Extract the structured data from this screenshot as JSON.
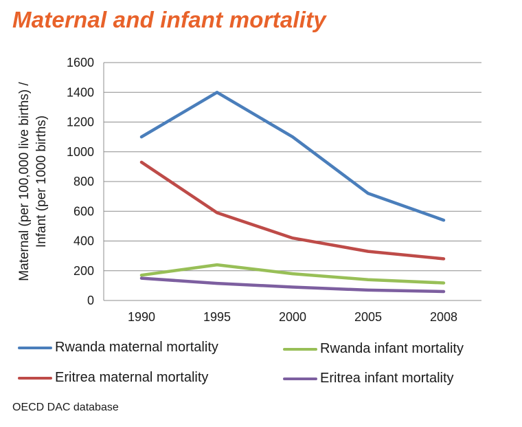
{
  "title": "Maternal and infant mortality",
  "source": "OECD DAC database",
  "chart_data": {
    "type": "line",
    "title": "Maternal and infant mortality",
    "xlabel": "",
    "ylabel_lines": [
      "Maternal (per 100,000 live births) /",
      "Infant (per 1000 births)"
    ],
    "x": [
      "1990",
      "1995",
      "2000",
      "2005",
      "2008"
    ],
    "ylim": [
      0,
      1600
    ],
    "yticks": [
      0,
      200,
      400,
      600,
      800,
      1000,
      1200,
      1400,
      1600
    ],
    "grid": true,
    "legend_position": "bottom",
    "series": [
      {
        "name": "Rwanda maternal mortality",
        "color": "#4a7ebb",
        "values": [
          1100,
          1400,
          1100,
          720,
          540
        ]
      },
      {
        "name": "Eritrea maternal mortality",
        "color": "#be4b48",
        "values": [
          930,
          590,
          420,
          330,
          280
        ]
      },
      {
        "name": "Rwanda infant mortality",
        "color": "#98bf57",
        "values": [
          170,
          240,
          180,
          140,
          118
        ]
      },
      {
        "name": "Eritrea infant mortality",
        "color": "#7d5fa0",
        "values": [
          150,
          115,
          90,
          70,
          60
        ]
      }
    ]
  }
}
